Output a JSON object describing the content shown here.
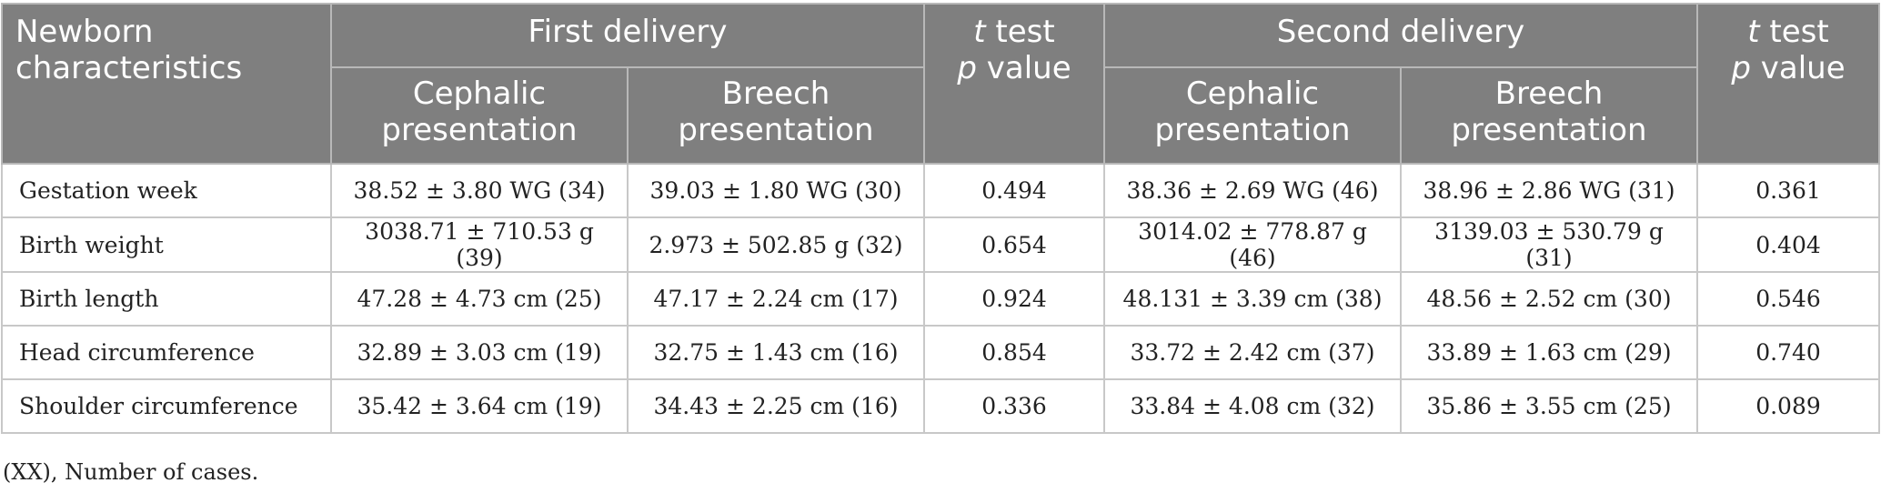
{
  "header": {
    "row_label": "Newborn characteristics",
    "first_delivery": "First delivery",
    "second_delivery": "Second delivery",
    "ttest_t": "t",
    "ttest_test": " test",
    "ttest_p": "p",
    "ttest_value": " value",
    "cephalic": "Cephalic presentation",
    "breech": "Breech presentation"
  },
  "rows": [
    {
      "label": "Gestation week",
      "first_cephalic": "38.52 ± 3.80 WG (34)",
      "first_breech": "39.03 ± 1.80 WG (30)",
      "first_p": "0.494",
      "second_cephalic": "38.36 ± 2.69 WG (46)",
      "second_breech": "38.96 ± 2.86 WG (31)",
      "second_p": "0.361"
    },
    {
      "label": "Birth weight",
      "first_cephalic": "3038.71 ± 710.53 g (39)",
      "first_breech": "2.973 ± 502.85 g (32)",
      "first_p": "0.654",
      "second_cephalic": "3014.02 ± 778.87 g (46)",
      "second_breech": "3139.03 ± 530.79 g (31)",
      "second_p": "0.404"
    },
    {
      "label": "Birth length",
      "first_cephalic": "47.28 ± 4.73 cm (25)",
      "first_breech": "47.17 ± 2.24 cm (17)",
      "first_p": "0.924",
      "second_cephalic": "48.131 ± 3.39 cm (38)",
      "second_breech": "48.56 ± 2.52 cm (30)",
      "second_p": "0.546"
    },
    {
      "label": "Head circumference",
      "first_cephalic": "32.89 ± 3.03 cm (19)",
      "first_breech": "32.75 ± 1.43 cm (16)",
      "first_p": "0.854",
      "second_cephalic": "33.72 ± 2.42 cm (37)",
      "second_breech": "33.89 ± 1.63 cm (29)",
      "second_p": "0.740"
    },
    {
      "label": "Shoulder circumference",
      "first_cephalic": "35.42 ± 3.64 cm (19)",
      "first_breech": "34.43 ± 2.25 cm (16)",
      "first_p": "0.336",
      "second_cephalic": "33.84 ± 4.08 cm (32)",
      "second_breech": "35.86 ± 3.55 cm (25)",
      "second_p": "0.089"
    }
  ],
  "footnote": "(XX), Number of cases."
}
